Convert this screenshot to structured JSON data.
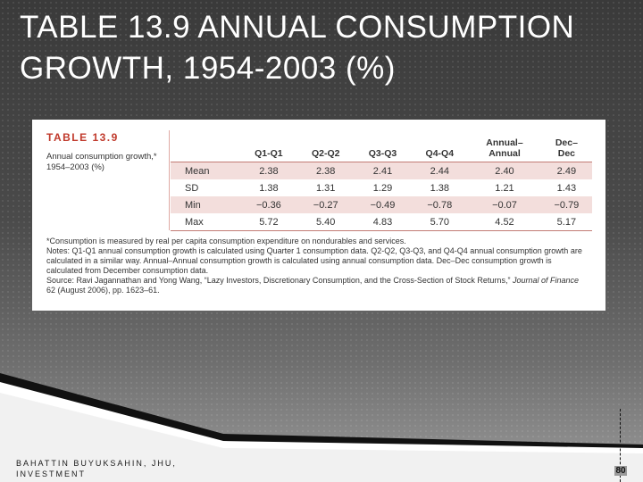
{
  "slide": {
    "title_line1": "TABLE 13.9 ANNUAL CONSUMPTION",
    "title_line2": "GROWTH, 1954-2003 (%)",
    "credit_line1": "BAHATTIN BUYUKSAHIN, JHU,",
    "credit_line2": "INVESTMENT",
    "page_number": "80"
  },
  "table": {
    "label": "TABLE 13.9",
    "caption": "Annual consumption growth,* 1954–2003 (%)",
    "headers": [
      "",
      "Q1-Q1",
      "Q2-Q2",
      "Q3-Q3",
      "Q4-Q4",
      "Annual–Annual",
      "Dec–Dec"
    ],
    "header_lines": {
      "annual_top": "Annual–",
      "annual_bottom": "Annual",
      "dec_top": "Dec–",
      "dec_bottom": "Dec"
    },
    "rows": [
      {
        "label": "Mean",
        "values": [
          "2.38",
          "2.38",
          "2.41",
          "2.44",
          "2.40",
          "2.49"
        ]
      },
      {
        "label": "SD",
        "values": [
          "1.38",
          "1.31",
          "1.29",
          "1.38",
          "1.21",
          "1.43"
        ]
      },
      {
        "label": "Min",
        "values": [
          "−0.36",
          "−0.27",
          "−0.49",
          "−0.78",
          "−0.07",
          "−0.79"
        ]
      },
      {
        "label": "Max",
        "values": [
          "5.72",
          "5.40",
          "4.83",
          "5.70",
          "4.52",
          "5.17"
        ]
      }
    ],
    "notes": {
      "footnote": "*Consumption is measured by real per capita consumption expenditure on nondurables and services.",
      "notes": "Notes: Q1-Q1 annual consumption growth is calculated using Quarter 1 consumption data. Q2-Q2, Q3-Q3, and Q4-Q4 annual consumption growth are calculated in a similar way. Annual–Annual consumption growth is calculated using annual consumption data. Dec–Dec consumption growth is calculated from December consumption data.",
      "source_prefix": "Source: Ravi Jagannathan and Yong Wang, “Lazy Investors, Discretionary Consumption, and the Cross-Section of Stock Returns,”",
      "source_journal": "Journal of Finance",
      "source_suffix": " 62 (August 2006), pp. 1623–61."
    }
  },
  "colors": {
    "accent": "#c0392b",
    "row_shade": "#f3dedc",
    "rule": "#c27b74"
  }
}
